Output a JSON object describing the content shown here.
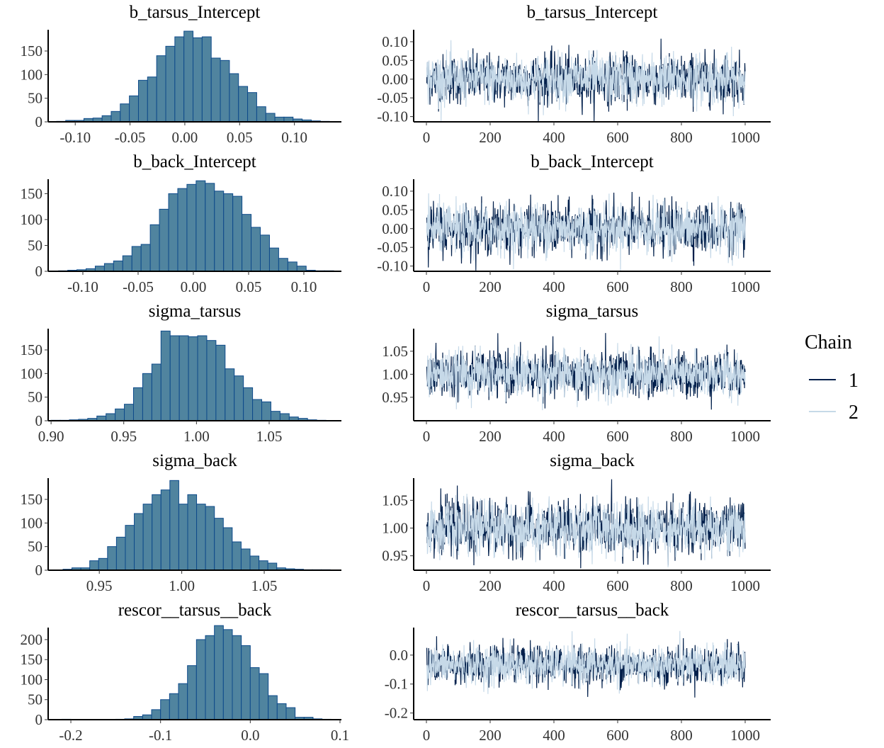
{
  "chart_data": [
    {
      "type": "histogram",
      "title": "b_tarsus_Intercept",
      "xlim": [
        -0.1247,
        0.1429
      ],
      "ylim": [
        0,
        195
      ],
      "xticks": [
        -0.1,
        -0.05,
        0.0,
        0.05,
        0.1
      ],
      "xtick_labels": [
        "-0.10",
        "-0.05",
        "0.00",
        "0.05",
        "0.10"
      ],
      "yticks": [
        0,
        50,
        100,
        150
      ],
      "ytick_labels": [
        "0",
        "50",
        "100",
        "150"
      ],
      "bins": {
        "start": -0.117,
        "width": 0.0083,
        "counts": [
          1,
          3,
          3,
          7,
          8,
          13,
          22,
          38,
          55,
          88,
          95,
          140,
          160,
          180,
          192,
          178,
          180,
          135,
          130,
          102,
          75,
          62,
          32,
          18,
          10,
          10,
          6,
          4,
          2,
          1
        ]
      }
    },
    {
      "type": "histogram",
      "title": "b_back_Intercept",
      "xlim": [
        -0.1314,
        0.134
      ],
      "ylim": [
        0,
        178
      ],
      "xticks": [
        -0.1,
        -0.05,
        0.0,
        0.05,
        0.1
      ],
      "xtick_labels": [
        "-0.10",
        "-0.05",
        "0.00",
        "0.05",
        "0.10"
      ],
      "yticks": [
        0,
        50,
        100,
        150
      ],
      "ytick_labels": [
        "0",
        "50",
        "100",
        "150"
      ],
      "bins": {
        "start": -0.122,
        "width": 0.0083,
        "counts": [
          1,
          2,
          3,
          5,
          10,
          15,
          20,
          30,
          48,
          52,
          90,
          120,
          150,
          160,
          168,
          175,
          170,
          155,
          150,
          145,
          110,
          85,
          70,
          45,
          25,
          18,
          10,
          2,
          1,
          1
        ]
      }
    },
    {
      "type": "histogram",
      "title": "sigma_tarsus",
      "xlim": [
        0.898,
        1.0997
      ],
      "ylim": [
        0,
        195
      ],
      "xticks": [
        0.9,
        0.95,
        1.0,
        1.05
      ],
      "xtick_labels": [
        "0.90",
        "0.95",
        "1.00",
        "1.05"
      ],
      "yticks": [
        0,
        50,
        100,
        150
      ],
      "ytick_labels": [
        "0",
        "50",
        "100",
        "150"
      ],
      "bins": {
        "start": 0.9,
        "width": 0.0063,
        "counts": [
          1,
          1,
          2,
          3,
          5,
          10,
          15,
          25,
          35,
          70,
          100,
          120,
          190,
          180,
          180,
          178,
          180,
          170,
          160,
          110,
          95,
          70,
          45,
          40,
          20,
          15,
          8,
          5,
          2,
          1
        ]
      }
    },
    {
      "type": "histogram",
      "title": "sigma_back",
      "xlim": [
        0.919,
        1.0968
      ],
      "ylim": [
        0,
        195
      ],
      "xticks": [
        0.95,
        1.0,
        1.05
      ],
      "xtick_labels": [
        "0.95",
        "1.00",
        "1.05"
      ],
      "yticks": [
        0,
        50,
        100,
        150
      ],
      "ytick_labels": [
        "0",
        "50",
        "100",
        "150"
      ],
      "bins": {
        "start": 0.928,
        "width": 0.0054,
        "counts": [
          2,
          5,
          5,
          20,
          25,
          50,
          70,
          95,
          120,
          140,
          160,
          170,
          190,
          140,
          160,
          140,
          135,
          110,
          90,
          60,
          45,
          30,
          20,
          15,
          5,
          3,
          2,
          1,
          1,
          1
        ]
      }
    },
    {
      "type": "histogram",
      "title": "rescor__tarsus__back",
      "xlim": [
        -0.2253,
        0.1016
      ],
      "ylim": [
        0,
        230
      ],
      "xticks": [
        -0.2,
        -0.1,
        0.0,
        0.1
      ],
      "xtick_labels": [
        "-0.2",
        "-0.1",
        "0.0",
        "0.1"
      ],
      "yticks": [
        0,
        50,
        100,
        150,
        200
      ],
      "ytick_labels": [
        "0",
        "50",
        "100",
        "150",
        "200"
      ],
      "bins": {
        "start": -0.21,
        "width": 0.01,
        "counts": [
          1,
          0,
          0,
          0,
          0,
          0,
          1,
          2,
          8,
          12,
          25,
          50,
          65,
          90,
          135,
          200,
          210,
          235,
          225,
          210,
          185,
          130,
          115,
          60,
          40,
          30,
          6,
          6,
          2,
          1
        ]
      }
    },
    {
      "type": "line",
      "title": "b_tarsus_Intercept",
      "xlim": [
        -40,
        1080
      ],
      "ylim": [
        -0.114,
        0.132
      ],
      "xticks": [
        0,
        200,
        400,
        600,
        800,
        1000
      ],
      "xtick_labels": [
        "0",
        "200",
        "400",
        "600",
        "800",
        "1000"
      ],
      "yticks": [
        0.1,
        0.05,
        0.0,
        -0.05,
        -0.1
      ],
      "ytick_labels": [
        "0.10",
        "0.05",
        "0.00",
        "-0.05",
        "-0.10"
      ],
      "series_params": {
        "mean": 0.0,
        "sd": 0.033,
        "iterations": 1000
      }
    },
    {
      "type": "line",
      "title": "b_back_Intercept",
      "xlim": [
        -40,
        1080
      ],
      "ylim": [
        -0.114,
        0.132
      ],
      "xticks": [
        0,
        200,
        400,
        600,
        800,
        1000
      ],
      "xtick_labels": [
        "0",
        "200",
        "400",
        "600",
        "800",
        "1000"
      ],
      "yticks": [
        0.1,
        0.05,
        0.0,
        -0.05,
        -0.1
      ],
      "ytick_labels": [
        "0.10",
        "0.05",
        "0.00",
        "-0.05",
        "-0.10"
      ],
      "series_params": {
        "mean": 0.0,
        "sd": 0.033,
        "iterations": 1000
      }
    },
    {
      "type": "line",
      "title": "sigma_tarsus",
      "xlim": [
        -40,
        1080
      ],
      "ylim": [
        0.899,
        1.099
      ],
      "xticks": [
        0,
        200,
        400,
        600,
        800,
        1000
      ],
      "xtick_labels": [
        "0",
        "200",
        "400",
        "600",
        "800",
        "1000"
      ],
      "yticks": [
        1.05,
        1.0,
        0.95
      ],
      "ytick_labels": [
        "1.05",
        "1.00",
        "0.95"
      ],
      "series_params": {
        "mean": 1.0,
        "sd": 0.025,
        "iterations": 1000
      }
    },
    {
      "type": "line",
      "title": "sigma_back",
      "xlim": [
        -40,
        1080
      ],
      "ylim": [
        0.924,
        1.09
      ],
      "xticks": [
        0,
        200,
        400,
        600,
        800,
        1000
      ],
      "xtick_labels": [
        "0",
        "200",
        "400",
        "600",
        "800",
        "1000"
      ],
      "yticks": [
        1.05,
        1.0,
        0.95
      ],
      "ytick_labels": [
        "1.05",
        "1.00",
        "0.95"
      ],
      "series_params": {
        "mean": 1.0,
        "sd": 0.024,
        "iterations": 1000
      }
    },
    {
      "type": "line",
      "title": "rescor__tarsus__back",
      "xlim": [
        -40,
        1080
      ],
      "ylim": [
        -0.223,
        0.095
      ],
      "xticks": [
        0,
        200,
        400,
        600,
        800,
        1000
      ],
      "xtick_labels": [
        "0",
        "200",
        "400",
        "600",
        "800",
        "1000"
      ],
      "yticks": [
        0.0,
        -0.1,
        -0.2
      ],
      "ytick_labels": [
        "0.0",
        "-0.1",
        "-0.2"
      ],
      "series_params": {
        "mean": -0.035,
        "sd": 0.033,
        "iterations": 1000
      }
    }
  ],
  "legend": {
    "title": "Chain",
    "placement": "right",
    "items": [
      {
        "label": "1",
        "color": "#011f4b"
      },
      {
        "label": "2",
        "color": "#c6d9e8"
      }
    ]
  },
  "colors": {
    "bar_fill": "#50849f",
    "bar_stroke": "#0e4a8a"
  }
}
